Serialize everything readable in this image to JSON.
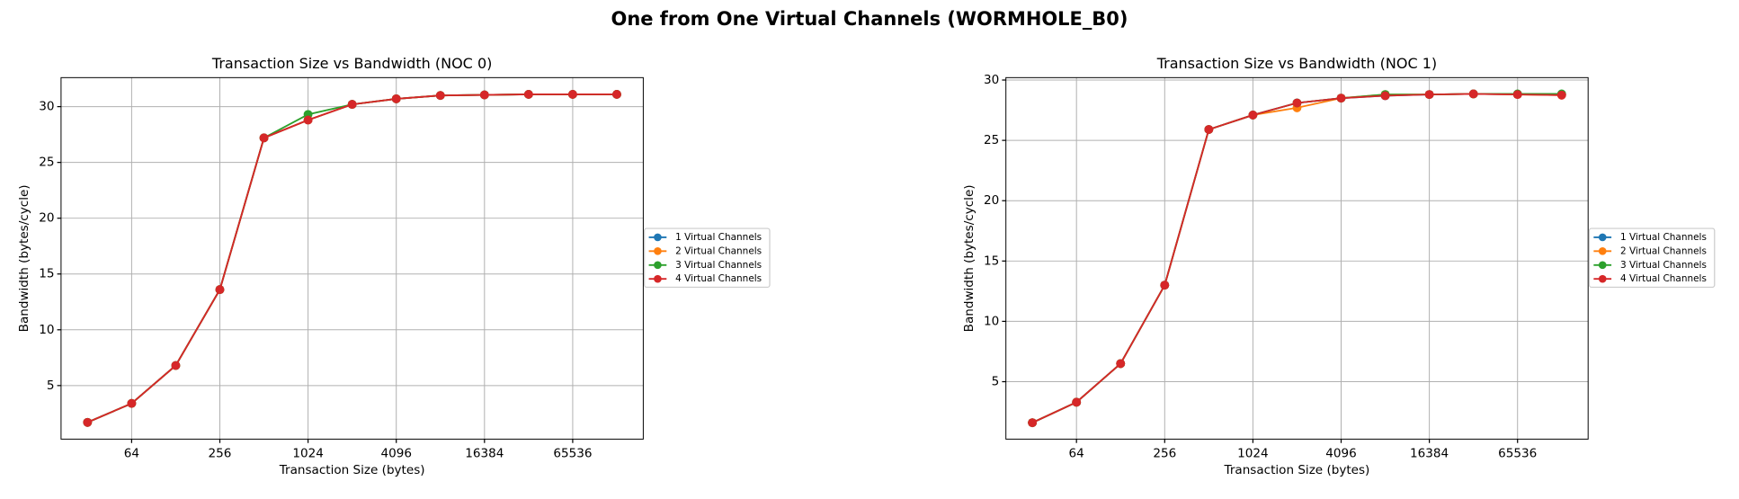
{
  "title": "One from One Virtual Channels (WORMHOLE_B0)",
  "chart_data": [
    {
      "type": "line",
      "title": "Transaction Size vs Bandwidth (NOC 0)",
      "x_label": "Transaction Size (bytes)",
      "y_label": "Bandwidth (bytes/cycle)",
      "x": [
        32,
        64,
        128,
        256,
        512,
        1024,
        2048,
        4096,
        8192,
        16384,
        32768,
        65536,
        131072
      ],
      "xscale": "log",
      "log_base": 2,
      "xlim": [
        21.11,
        198668
      ],
      "xticks": [
        64,
        256,
        1024,
        4096,
        16384,
        65536
      ],
      "ylim": [
        0.2,
        32.6
      ],
      "yticks": [
        5,
        10,
        15,
        20,
        25,
        30
      ],
      "grid": true,
      "legend": "right",
      "series": [
        {
          "name": "1 Virtual Channels",
          "color": "#1f77b4",
          "values": [
            1.7,
            3.4,
            6.8,
            13.6,
            27.2,
            28.8,
            30.2,
            30.7,
            31.0,
            31.05,
            31.1,
            31.1,
            31.1
          ]
        },
        {
          "name": "2 Virtual Channels",
          "color": "#ff7f0e",
          "values": [
            1.7,
            3.4,
            6.8,
            13.6,
            27.2,
            28.8,
            30.2,
            30.7,
            31.0,
            31.05,
            31.1,
            31.1,
            31.1
          ]
        },
        {
          "name": "3 Virtual Channels",
          "color": "#2ca02c",
          "values": [
            1.7,
            3.4,
            6.8,
            13.6,
            27.2,
            29.3,
            30.2,
            30.7,
            31.0,
            31.05,
            31.1,
            31.1,
            31.1
          ]
        },
        {
          "name": "4 Virtual Channels",
          "color": "#d62728",
          "values": [
            1.7,
            3.4,
            6.8,
            13.6,
            27.2,
            28.8,
            30.2,
            30.7,
            31.0,
            31.05,
            31.1,
            31.1,
            31.1
          ]
        }
      ]
    },
    {
      "type": "line",
      "title": "Transaction Size vs Bandwidth (NOC 1)",
      "x_label": "Transaction Size (bytes)",
      "y_label": "Bandwidth (bytes/cycle)",
      "x": [
        32,
        64,
        128,
        256,
        512,
        1024,
        2048,
        4096,
        8192,
        16384,
        32768,
        65536,
        131072
      ],
      "xscale": "log",
      "log_base": 2,
      "xlim": [
        21.11,
        198668
      ],
      "xticks": [
        64,
        256,
        1024,
        4096,
        16384,
        65536
      ],
      "ylim": [
        0.24,
        30.2
      ],
      "yticks": [
        5,
        10,
        15,
        20,
        25,
        30
      ],
      "grid": true,
      "legend": "right",
      "series": [
        {
          "name": "1 Virtual Channels",
          "color": "#1f77b4",
          "values": [
            1.6,
            3.3,
            6.5,
            13.0,
            25.9,
            27.1,
            28.1,
            28.5,
            28.7,
            28.8,
            28.85,
            28.8,
            28.8
          ]
        },
        {
          "name": "2 Virtual Channels",
          "color": "#ff7f0e",
          "values": [
            1.6,
            3.3,
            6.5,
            13.0,
            25.9,
            27.1,
            27.7,
            28.5,
            28.8,
            28.8,
            28.85,
            28.8,
            28.75
          ]
        },
        {
          "name": "3 Virtual Channels",
          "color": "#2ca02c",
          "values": [
            1.6,
            3.3,
            6.5,
            13.0,
            25.9,
            27.1,
            28.1,
            28.5,
            28.8,
            28.8,
            28.85,
            28.85,
            28.85
          ]
        },
        {
          "name": "4 Virtual Channels",
          "color": "#d62728",
          "values": [
            1.6,
            3.3,
            6.5,
            13.0,
            25.9,
            27.1,
            28.1,
            28.5,
            28.7,
            28.8,
            28.85,
            28.8,
            28.75
          ]
        }
      ]
    }
  ]
}
